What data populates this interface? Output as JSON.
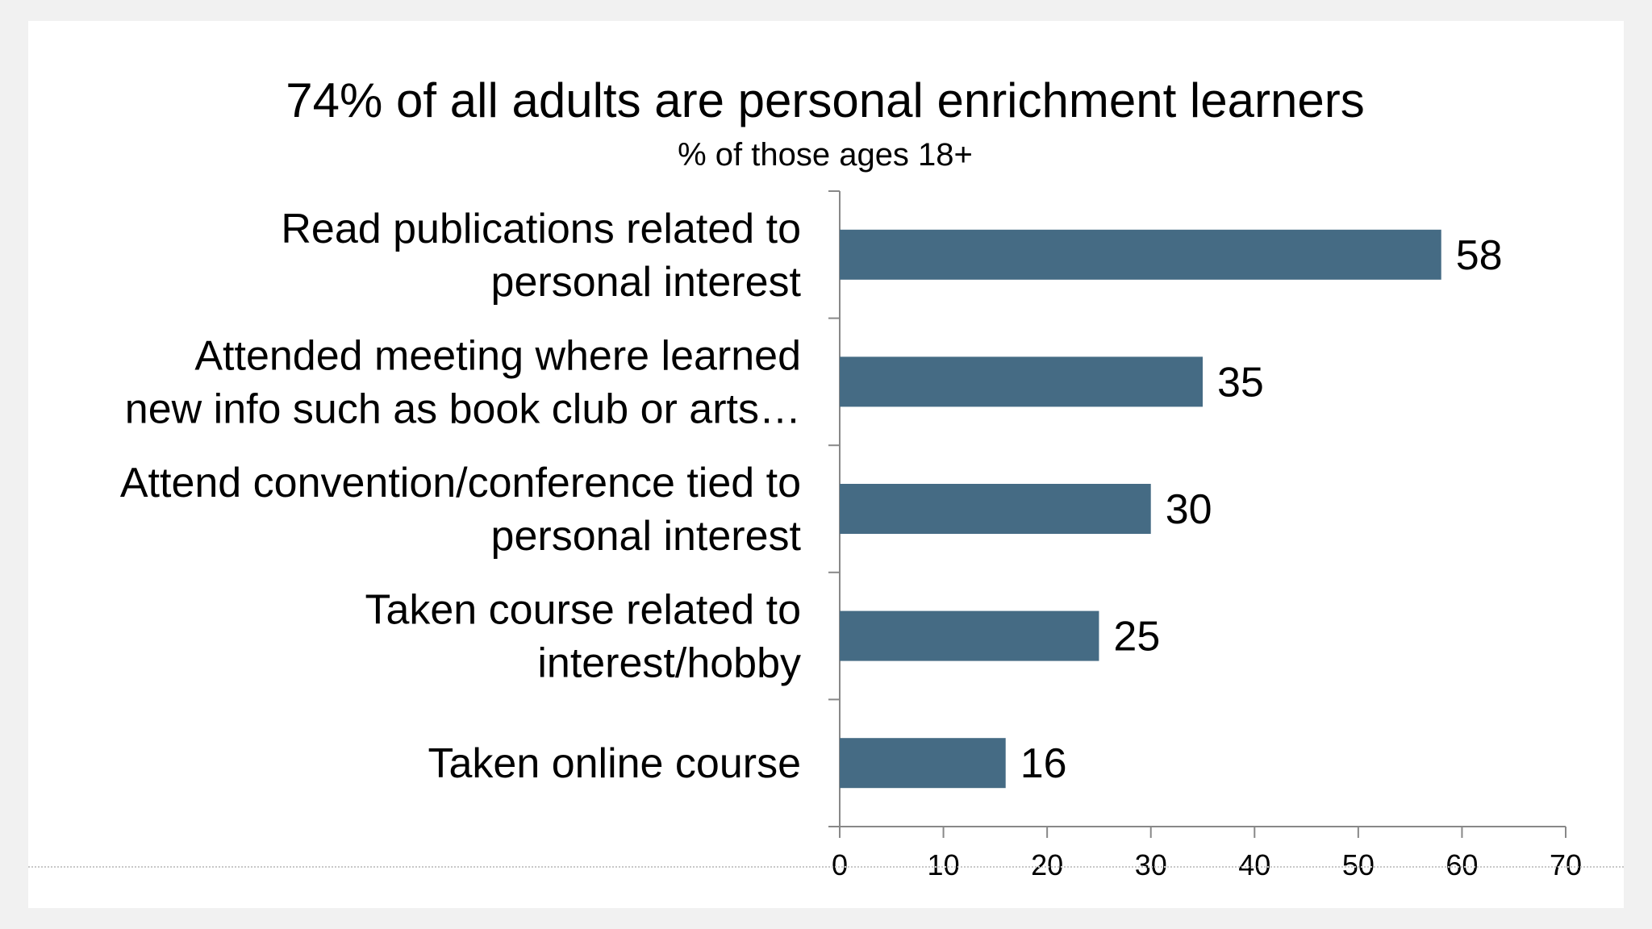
{
  "chart_data": {
    "type": "bar",
    "orientation": "horizontal",
    "title": "74% of all adults are personal enrichment learners",
    "subtitle": "% of those ages 18+",
    "categories": [
      [
        "Read publications related to",
        "personal interest"
      ],
      [
        "Attended meeting where learned",
        "new info such as book club or arts…"
      ],
      [
        "Attend convention/conference tied to",
        "personal interest"
      ],
      [
        "Taken course related to",
        "interest/hobby"
      ],
      [
        "Taken online course"
      ]
    ],
    "values": [
      58,
      35,
      30,
      25,
      16
    ],
    "xlim": [
      0,
      70
    ],
    "xticks": [
      0,
      10,
      20,
      30,
      40,
      50,
      60,
      70
    ],
    "bar_color": "#456b84",
    "grid": false,
    "legend": "none"
  }
}
